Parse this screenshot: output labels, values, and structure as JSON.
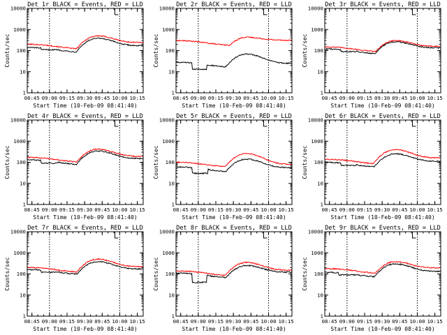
{
  "colors": {
    "background": "#ffffff",
    "axes": "#000000",
    "events": "#000000",
    "lld": "#ff0000"
  },
  "chart_data": [
    {
      "type": "line",
      "title": "Det 1r BLACK = Events, RED = LLD",
      "xlabel": "Start Time (10-Feb-09 08:41:40)",
      "ylabel": "Counts/sec",
      "yscale": "log",
      "ylim": [
        1,
        10000
      ],
      "grid": false,
      "legend": "none",
      "x_ticks": [
        "08:45",
        "09:00",
        "09:15",
        "09:30",
        "09:45",
        "10:00",
        "10:15"
      ],
      "y_ticks": [
        "1",
        "10",
        "100",
        "1000",
        "10000"
      ],
      "markers": [
        "09:00",
        "10:00"
      ],
      "x": [
        "08:41",
        "09:41",
        "10:20"
      ],
      "series": [
        {
          "values": [
            200,
            500,
            240
          ]
        },
        {
          "values": [
            140,
            380,
            170
          ],
          "dip": {
            "start": "08:53",
            "end": "09:08",
            "value": 110
          }
        }
      ]
    },
    {
      "type": "line",
      "title": "Det 2r BLACK = Events, RED = LLD",
      "xlabel": "Start Time (10-Feb-09 08:41:40)",
      "ylabel": "Counts/sec",
      "yscale": "log",
      "ylim": [
        1,
        10000
      ],
      "grid": false,
      "legend": "none",
      "x_ticks": [
        "08:45",
        "09:00",
        "09:15",
        "09:30",
        "09:45",
        "10:00",
        "10:15"
      ],
      "y_ticks": [
        "1",
        "10",
        "100",
        "1000",
        "10000"
      ],
      "markers": [
        "09:00",
        "10:00"
      ],
      "x": [
        "08:41",
        "09:41",
        "10:20"
      ],
      "series": [
        {
          "values": [
            300,
            430,
            310
          ]
        },
        {
          "values": [
            28,
            68,
            25
          ],
          "dip": {
            "start": "08:55",
            "end": "09:07",
            "value": 13
          }
        }
      ]
    },
    {
      "type": "line",
      "title": "Det 3r BLACK = Events, RED = LLD",
      "xlabel": "Start Time (10-Feb-09 08:41:40)",
      "ylabel": "Counts/sec",
      "yscale": "log",
      "ylim": [
        1,
        10000
      ],
      "grid": false,
      "legend": "none",
      "x_ticks": [
        "08:45",
        "09:00",
        "09:15",
        "09:30",
        "09:45",
        "10:00",
        "10:15"
      ],
      "y_ticks": [
        "1",
        "10",
        "100",
        "1000",
        "10000"
      ],
      "markers": [
        "09:00",
        "10:00"
      ],
      "x": [
        "08:41",
        "09:41",
        "10:20"
      ],
      "series": [
        {
          "values": [
            150,
            300,
            160
          ]
        },
        {
          "values": [
            120,
            260,
            135
          ],
          "dip": {
            "start": "08:55",
            "end": "09:07",
            "value": 90
          }
        }
      ]
    },
    {
      "type": "line",
      "title": "Det 4r BLACK = Events, RED = LLD",
      "xlabel": "Start Time (10-Feb-09 08:41:40)",
      "ylabel": "Counts/sec",
      "yscale": "log",
      "ylim": [
        1,
        10000
      ],
      "grid": false,
      "legend": "none",
      "x_ticks": [
        "08:45",
        "09:00",
        "09:15",
        "09:30",
        "09:45",
        "10:00",
        "10:15"
      ],
      "y_ticks": [
        "1",
        "10",
        "100",
        "1000",
        "10000"
      ],
      "markers": [
        "09:00",
        "10:00"
      ],
      "x": [
        "08:41",
        "09:41",
        "10:20"
      ],
      "series": [
        {
          "values": [
            170,
            420,
            190
          ]
        },
        {
          "values": [
            130,
            340,
            150
          ],
          "dip": {
            "start": "08:53",
            "end": "09:07",
            "value": 90
          }
        }
      ]
    },
    {
      "type": "line",
      "title": "Det 5r BLACK = Events, RED = LLD",
      "xlabel": "Start Time (10-Feb-09 08:41:40)",
      "ylabel": "Counts/sec",
      "yscale": "log",
      "ylim": [
        1,
        10000
      ],
      "grid": false,
      "legend": "none",
      "x_ticks": [
        "08:45",
        "09:00",
        "09:15",
        "09:30",
        "09:45",
        "10:00",
        "10:15"
      ],
      "y_ticks": [
        "1",
        "10",
        "100",
        "1000",
        "10000"
      ],
      "markers": [
        "09:00",
        "10:00"
      ],
      "x": [
        "08:41",
        "09:41",
        "10:20"
      ],
      "series": [
        {
          "values": [
            100,
            260,
            80
          ]
        },
        {
          "values": [
            60,
            140,
            55
          ],
          "dip": {
            "start": "08:55",
            "end": "09:08",
            "value": 30
          }
        }
      ]
    },
    {
      "type": "line",
      "title": "Det 6r BLACK = Events, RED = LLD",
      "xlabel": "Start Time (10-Feb-09 08:41:40)",
      "ylabel": "Counts/sec",
      "yscale": "log",
      "ylim": [
        1,
        10000
      ],
      "grid": false,
      "legend": "none",
      "x_ticks": [
        "08:45",
        "09:00",
        "09:15",
        "09:30",
        "09:45",
        "10:00",
        "10:15"
      ],
      "y_ticks": [
        "1",
        "10",
        "100",
        "1000",
        "10000"
      ],
      "markers": [
        "09:00",
        "10:00"
      ],
      "x": [
        "08:41",
        "09:41",
        "10:20"
      ],
      "series": [
        {
          "values": [
            140,
            400,
            160
          ]
        },
        {
          "values": [
            100,
            250,
            110
          ],
          "dip": {
            "start": "08:55",
            "end": "09:07",
            "value": 70
          }
        }
      ]
    },
    {
      "type": "line",
      "title": "Det 7r BLACK = Events, RED = LLD",
      "xlabel": "Start Time (10-Feb-09 08:41:40)",
      "ylabel": "Counts/sec",
      "yscale": "log",
      "ylim": [
        1,
        10000
      ],
      "grid": false,
      "legend": "none",
      "x_ticks": [
        "08:45",
        "09:00",
        "09:15",
        "09:30",
        "09:45",
        "10:00",
        "10:15"
      ],
      "y_ticks": [
        "1",
        "10",
        "100",
        "1000",
        "10000"
      ],
      "markers": [
        "09:00",
        "10:00"
      ],
      "x": [
        "08:41",
        "09:41",
        "10:20"
      ],
      "series": [
        {
          "values": [
            200,
            500,
            220
          ]
        },
        {
          "values": [
            160,
            380,
            170
          ],
          "dip": {
            "start": "08:53",
            "end": "09:07",
            "value": 120
          }
        }
      ]
    },
    {
      "type": "line",
      "title": "Det 8r BLACK = Events, RED = LLD",
      "xlabel": "Start Time (10-Feb-09 08:41:40)",
      "ylabel": "Counts/sec",
      "yscale": "log",
      "ylim": [
        1,
        10000
      ],
      "grid": false,
      "legend": "none",
      "x_ticks": [
        "08:45",
        "09:00",
        "09:15",
        "09:30",
        "09:45",
        "10:00",
        "10:15"
      ],
      "y_ticks": [
        "1",
        "10",
        "100",
        "1000",
        "10000"
      ],
      "markers": [
        "09:00",
        "10:00"
      ],
      "x": [
        "08:41",
        "09:41",
        "10:20"
      ],
      "series": [
        {
          "values": [
            140,
            350,
            150
          ]
        },
        {
          "values": [
            110,
            250,
            120
          ],
          "dip": {
            "start": "08:55",
            "end": "09:07",
            "value": 40
          }
        }
      ]
    },
    {
      "type": "line",
      "title": "Det 9r BLACK = Events, RED = LLD",
      "xlabel": "Start Time (10-Feb-09 08:41:40)",
      "ylabel": "Counts/sec",
      "yscale": "log",
      "ylim": [
        1,
        10000
      ],
      "grid": false,
      "legend": "none",
      "x_ticks": [
        "08:45",
        "09:00",
        "09:15",
        "09:30",
        "09:45",
        "10:00",
        "10:15"
      ],
      "y_ticks": [
        "1",
        "10",
        "100",
        "1000",
        "10000"
      ],
      "markers": [
        "09:00",
        "10:00"
      ],
      "x": [
        "08:41",
        "09:41",
        "10:20"
      ],
      "series": [
        {
          "values": [
            180,
            380,
            190
          ]
        },
        {
          "values": [
            120,
            300,
            130
          ],
          "dip": {
            "start": "08:53",
            "end": "09:07",
            "value": 90
          }
        }
      ]
    }
  ]
}
